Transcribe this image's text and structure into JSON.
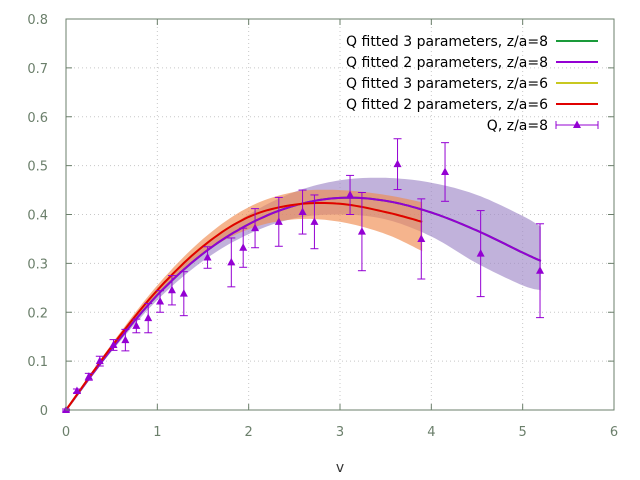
{
  "chart_data": {
    "type": "line",
    "title": "",
    "xlabel": "v",
    "ylabel": "",
    "xlim": [
      0,
      6
    ],
    "ylim": [
      0,
      0.8
    ],
    "xticks": [
      "0",
      "1",
      "2",
      "3",
      "4",
      "5",
      "6"
    ],
    "yticks": [
      "0",
      "0.1",
      "0.2",
      "0.3",
      "0.4",
      "0.5",
      "0.6",
      "0.7",
      "0.8"
    ],
    "grid": true,
    "legend_position": "top-right",
    "series": [
      {
        "name": "Q fitted 3 parameters, z/a=8",
        "color": "#1a9a3a",
        "x": [
          0,
          0.5,
          1,
          1.5,
          2,
          2.5,
          3,
          3.5,
          4,
          4.5,
          5,
          5.2
        ],
        "values": [
          0,
          0.125,
          0.235,
          0.32,
          0.38,
          0.418,
          0.434,
          0.428,
          0.404,
          0.367,
          0.322,
          0.305
        ]
      },
      {
        "name": "Q fitted 2 parameters, z/a=8",
        "color": "#9400d3",
        "x": [
          0,
          0.5,
          1,
          1.5,
          2,
          2.5,
          3,
          3.5,
          4,
          4.5,
          5,
          5.2
        ],
        "values": [
          0,
          0.125,
          0.235,
          0.32,
          0.38,
          0.418,
          0.434,
          0.428,
          0.404,
          0.367,
          0.322,
          0.305
        ],
        "band_upper": [
          0,
          0.13,
          0.245,
          0.335,
          0.4,
          0.446,
          0.47,
          0.475,
          0.465,
          0.44,
          0.397,
          0.375
        ],
        "band_lower": [
          0,
          0.12,
          0.225,
          0.305,
          0.36,
          0.392,
          0.4,
          0.39,
          0.355,
          0.3,
          0.255,
          0.245
        ],
        "band_color": "#a088c8"
      },
      {
        "name": "Q fitted 3 parameters, z/a=6",
        "color": "#c8c820",
        "x": [
          0,
          0.5,
          1,
          1.5,
          2,
          2.5,
          3,
          3.5,
          3.9
        ],
        "values": [
          0,
          0.13,
          0.245,
          0.335,
          0.395,
          0.42,
          0.422,
          0.405,
          0.385
        ]
      },
      {
        "name": "Q fitted 2 parameters, z/a=6",
        "color": "#e00000",
        "x": [
          0,
          0.5,
          1,
          1.5,
          2,
          2.5,
          3,
          3.5,
          3.9
        ],
        "values": [
          0,
          0.13,
          0.245,
          0.335,
          0.395,
          0.42,
          0.422,
          0.405,
          0.385
        ],
        "band_upper": [
          0,
          0.135,
          0.255,
          0.35,
          0.415,
          0.446,
          0.45,
          0.44,
          0.425
        ],
        "band_lower": [
          0,
          0.125,
          0.235,
          0.32,
          0.37,
          0.39,
          0.385,
          0.36,
          0.325
        ],
        "band_color": "#f08c50"
      },
      {
        "name": "Q, z/a=8",
        "color": "#9400d3",
        "type": "errorbar",
        "points": [
          {
            "x": 0,
            "y": 0.0,
            "err": 0.002
          },
          {
            "x": 0.12,
            "y": 0.039,
            "err": 0.004
          },
          {
            "x": 0.25,
            "y": 0.068,
            "err": 0.007
          },
          {
            "x": 0.37,
            "y": 0.1,
            "err": 0.01
          },
          {
            "x": 0.52,
            "y": 0.133,
            "err": 0.011
          },
          {
            "x": 0.65,
            "y": 0.143,
            "err": 0.022
          },
          {
            "x": 0.77,
            "y": 0.172,
            "err": 0.014
          },
          {
            "x": 0.9,
            "y": 0.188,
            "err": 0.03
          },
          {
            "x": 1.03,
            "y": 0.222,
            "err": 0.022
          },
          {
            "x": 1.16,
            "y": 0.245,
            "err": 0.03
          },
          {
            "x": 1.29,
            "y": 0.238,
            "err": 0.045
          },
          {
            "x": 1.55,
            "y": 0.312,
            "err": 0.022
          },
          {
            "x": 1.81,
            "y": 0.302,
            "err": 0.05
          },
          {
            "x": 1.94,
            "y": 0.332,
            "err": 0.04
          },
          {
            "x": 2.07,
            "y": 0.372,
            "err": 0.04
          },
          {
            "x": 2.33,
            "y": 0.385,
            "err": 0.05
          },
          {
            "x": 2.59,
            "y": 0.405,
            "err": 0.045
          },
          {
            "x": 2.72,
            "y": 0.385,
            "err": 0.055
          },
          {
            "x": 3.11,
            "y": 0.44,
            "err": 0.04
          },
          {
            "x": 3.24,
            "y": 0.365,
            "err": 0.08
          },
          {
            "x": 3.63,
            "y": 0.503,
            "err": 0.052
          },
          {
            "x": 3.89,
            "y": 0.35,
            "err": 0.082
          },
          {
            "x": 4.15,
            "y": 0.487,
            "err": 0.06
          },
          {
            "x": 4.54,
            "y": 0.32,
            "err": 0.088
          },
          {
            "x": 5.19,
            "y": 0.285,
            "err": 0.096
          }
        ]
      }
    ]
  }
}
